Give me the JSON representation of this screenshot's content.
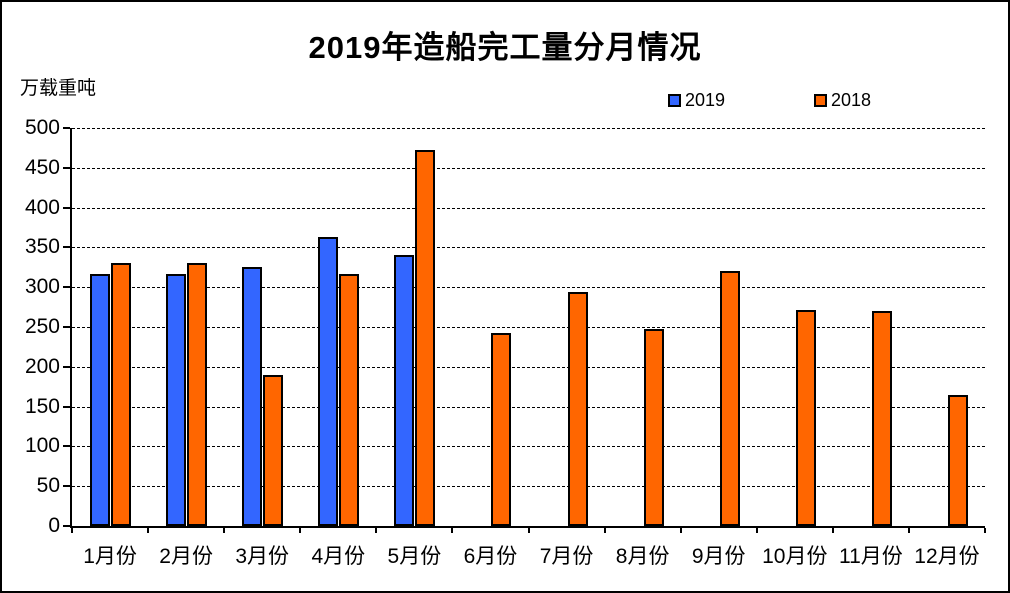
{
  "title": "2019年造船完工量分月情况",
  "y_axis_unit_label": "万载重吨",
  "legend": {
    "position": "top-right",
    "items": [
      {
        "label": "2019",
        "color": "#3366FF"
      },
      {
        "label": "2018",
        "color": "#FF6600"
      }
    ]
  },
  "colors": {
    "bar_2019": "#3366FF",
    "bar_2018": "#FF6600",
    "bar_border": "#000000",
    "axis": "#000000",
    "gridline": "#000000",
    "background": "#FFFFFF"
  },
  "chart_data": {
    "type": "bar",
    "title": "2019年造船完工量分月情况",
    "xlabel": "",
    "ylabel": "万载重吨",
    "categories": [
      "1月份",
      "2月份",
      "3月份",
      "4月份",
      "5月份",
      "6月份",
      "7月份",
      "8月份",
      "9月份",
      "10月份",
      "11月份",
      "12月份"
    ],
    "series": [
      {
        "name": "2019",
        "color": "#3366FF",
        "values": [
          317,
          317,
          325,
          363,
          340,
          null,
          null,
          null,
          null,
          null,
          null,
          null
        ]
      },
      {
        "name": "2018",
        "color": "#FF6600",
        "values": [
          330,
          331,
          190,
          316,
          473,
          242,
          294,
          248,
          320,
          271,
          270,
          165
        ]
      }
    ],
    "ylim": [
      0,
      500
    ],
    "yticks": [
      0,
      50,
      100,
      150,
      200,
      250,
      300,
      350,
      400,
      450,
      500
    ],
    "grid": "horizontal-dashed",
    "legend_position": "top-right"
  }
}
